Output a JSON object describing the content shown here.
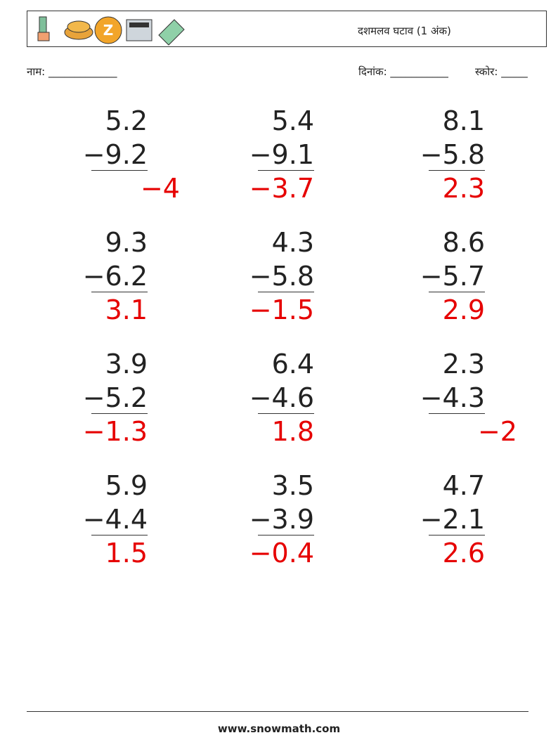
{
  "header": {
    "title": "दशमलव घटाव (1 अंक)"
  },
  "fields": {
    "name": "नाम: _____________",
    "date": "दिनांक: ___________",
    "score": "स्कोर: _____"
  },
  "problems": [
    [
      {
        "top": "5.2",
        "bottom": "−9.2",
        "answer": "−4"
      },
      {
        "top": "5.4",
        "bottom": "−9.1",
        "answer": "−3.7"
      },
      {
        "top": "8.1",
        "bottom": "−5.8",
        "answer": "2.3"
      }
    ],
    [
      {
        "top": "9.3",
        "bottom": "−6.2",
        "answer": "3.1"
      },
      {
        "top": "4.3",
        "bottom": "−5.8",
        "answer": "−1.5"
      },
      {
        "top": "8.6",
        "bottom": "−5.7",
        "answer": "2.9"
      }
    ],
    [
      {
        "top": "3.9",
        "bottom": "−5.2",
        "answer": "−1.3"
      },
      {
        "top": "6.4",
        "bottom": "−4.6",
        "answer": "1.8"
      },
      {
        "top": "2.3",
        "bottom": "−4.3",
        "answer": "−2"
      }
    ],
    [
      {
        "top": "5.9",
        "bottom": "−4.4",
        "answer": "1.5"
      },
      {
        "top": "3.5",
        "bottom": "−3.9",
        "answer": "−0.4"
      },
      {
        "top": "4.7",
        "bottom": "−2.1",
        "answer": "2.6"
      }
    ]
  ],
  "footer": {
    "site": "www.snowmath.com"
  }
}
